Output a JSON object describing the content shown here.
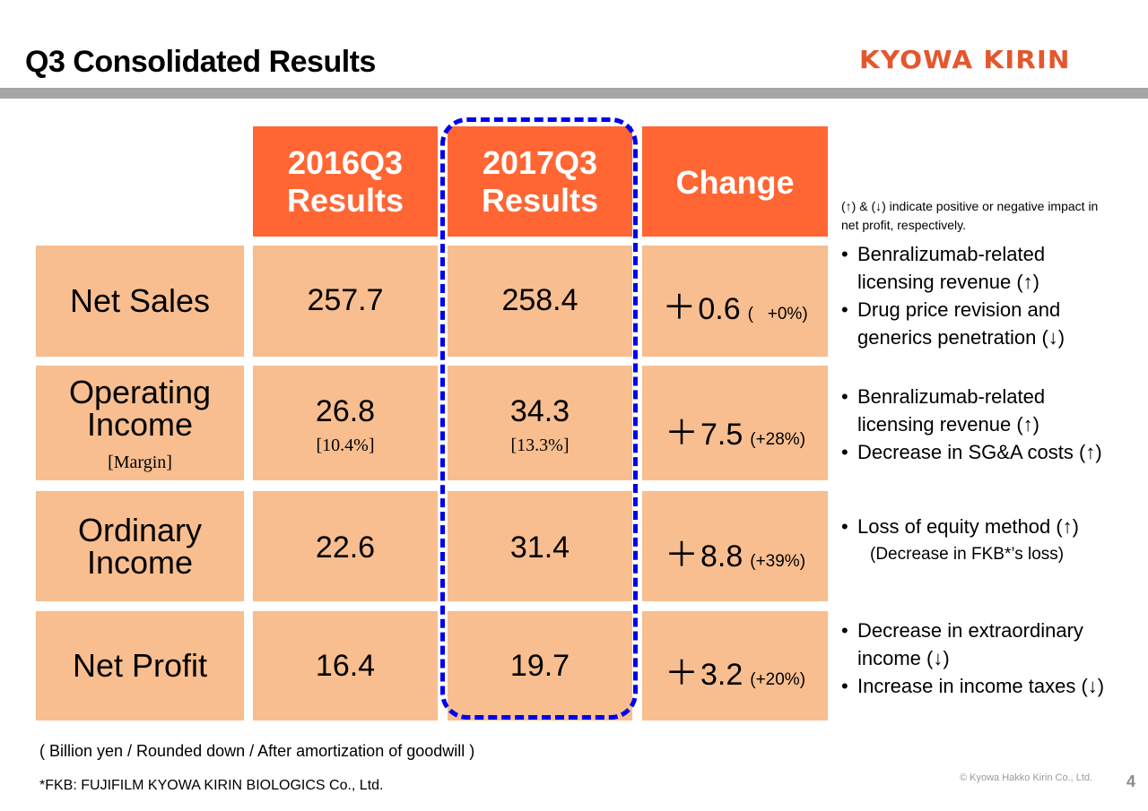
{
  "slide": {
    "title": "Q3 Consolidated Results",
    "logo": "KYOWA KIRIN",
    "page_number": "4",
    "copyright": "© Kyowa Hakko Kirin Co., Ltd."
  },
  "table": {
    "headers": {
      "col1_line1": "2016Q3",
      "col1_line2": "Results",
      "col2_line1": "2017Q3",
      "col2_line2": "Results",
      "col3": "Change"
    },
    "rows": [
      {
        "label_line1": "Net Sales",
        "label_line2": "",
        "label_sub": "",
        "v2016": "257.7",
        "v2016_sub": "",
        "v2017": "258.4",
        "v2017_sub": "",
        "change_sign": "＋",
        "change": "0.6",
        "change_pct": "(   +0%)"
      },
      {
        "label_line1": "Operating",
        "label_line2": "Income",
        "label_sub": "[Margin]",
        "v2016": "26.8",
        "v2016_sub": "[10.4%]",
        "v2017": "34.3",
        "v2017_sub": "[13.3%]",
        "change_sign": "＋",
        "change": "7.5",
        "change_pct": "(+28%)"
      },
      {
        "label_line1": "Ordinary",
        "label_line2": "Income",
        "label_sub": "",
        "v2016": "22.6",
        "v2016_sub": "",
        "v2017": "31.4",
        "v2017_sub": "",
        "change_sign": "＋",
        "change": "8.8",
        "change_pct": "(+39%)"
      },
      {
        "label_line1": "Net Profit",
        "label_line2": "",
        "label_sub": "",
        "v2016": "16.4",
        "v2016_sub": "",
        "v2017": "19.7",
        "v2017_sub": "",
        "change_sign": "＋",
        "change": "3.2",
        "change_pct": "(+20%)"
      }
    ]
  },
  "notes": {
    "legend": "(↑) & (↓) indicate positive or negative impact in net profit, respectively.",
    "net_sales": {
      "b1_l1": "Benralizumab-related",
      "b1_l2": "licensing revenue (↑)",
      "b2_l1": "Drug price revision and",
      "b2_l2": "generics penetration (↓)"
    },
    "operating_income": {
      "b1_l1": "Benralizumab-related",
      "b1_l2": "licensing revenue (↑)",
      "b2_l1": "Decrease in SG&A costs (↑)"
    },
    "ordinary_income": {
      "b1_l1": "Loss of equity method (↑)",
      "b1_paren": "(Decrease in FKB*’s loss)"
    },
    "net_profit": {
      "b1_l1": "Decrease in extraordinary",
      "b1_l2": "income (↓)",
      "b2_l1": "Increase in income taxes (↓)"
    }
  },
  "footer": {
    "units": "( Billion yen / Rounded down / After amortization of goodwill )",
    "fkb": "*FKB:  FUJIFILM KYOWA KIRIN BIOLOGICS Co., Ltd."
  },
  "colors": {
    "header_orange": "#ff6633",
    "cell_peach": "#f8be8f",
    "highlight_blue": "#0000ee",
    "title_rule_gray": "#a6a6a6",
    "logo_red": "#e4572e"
  }
}
